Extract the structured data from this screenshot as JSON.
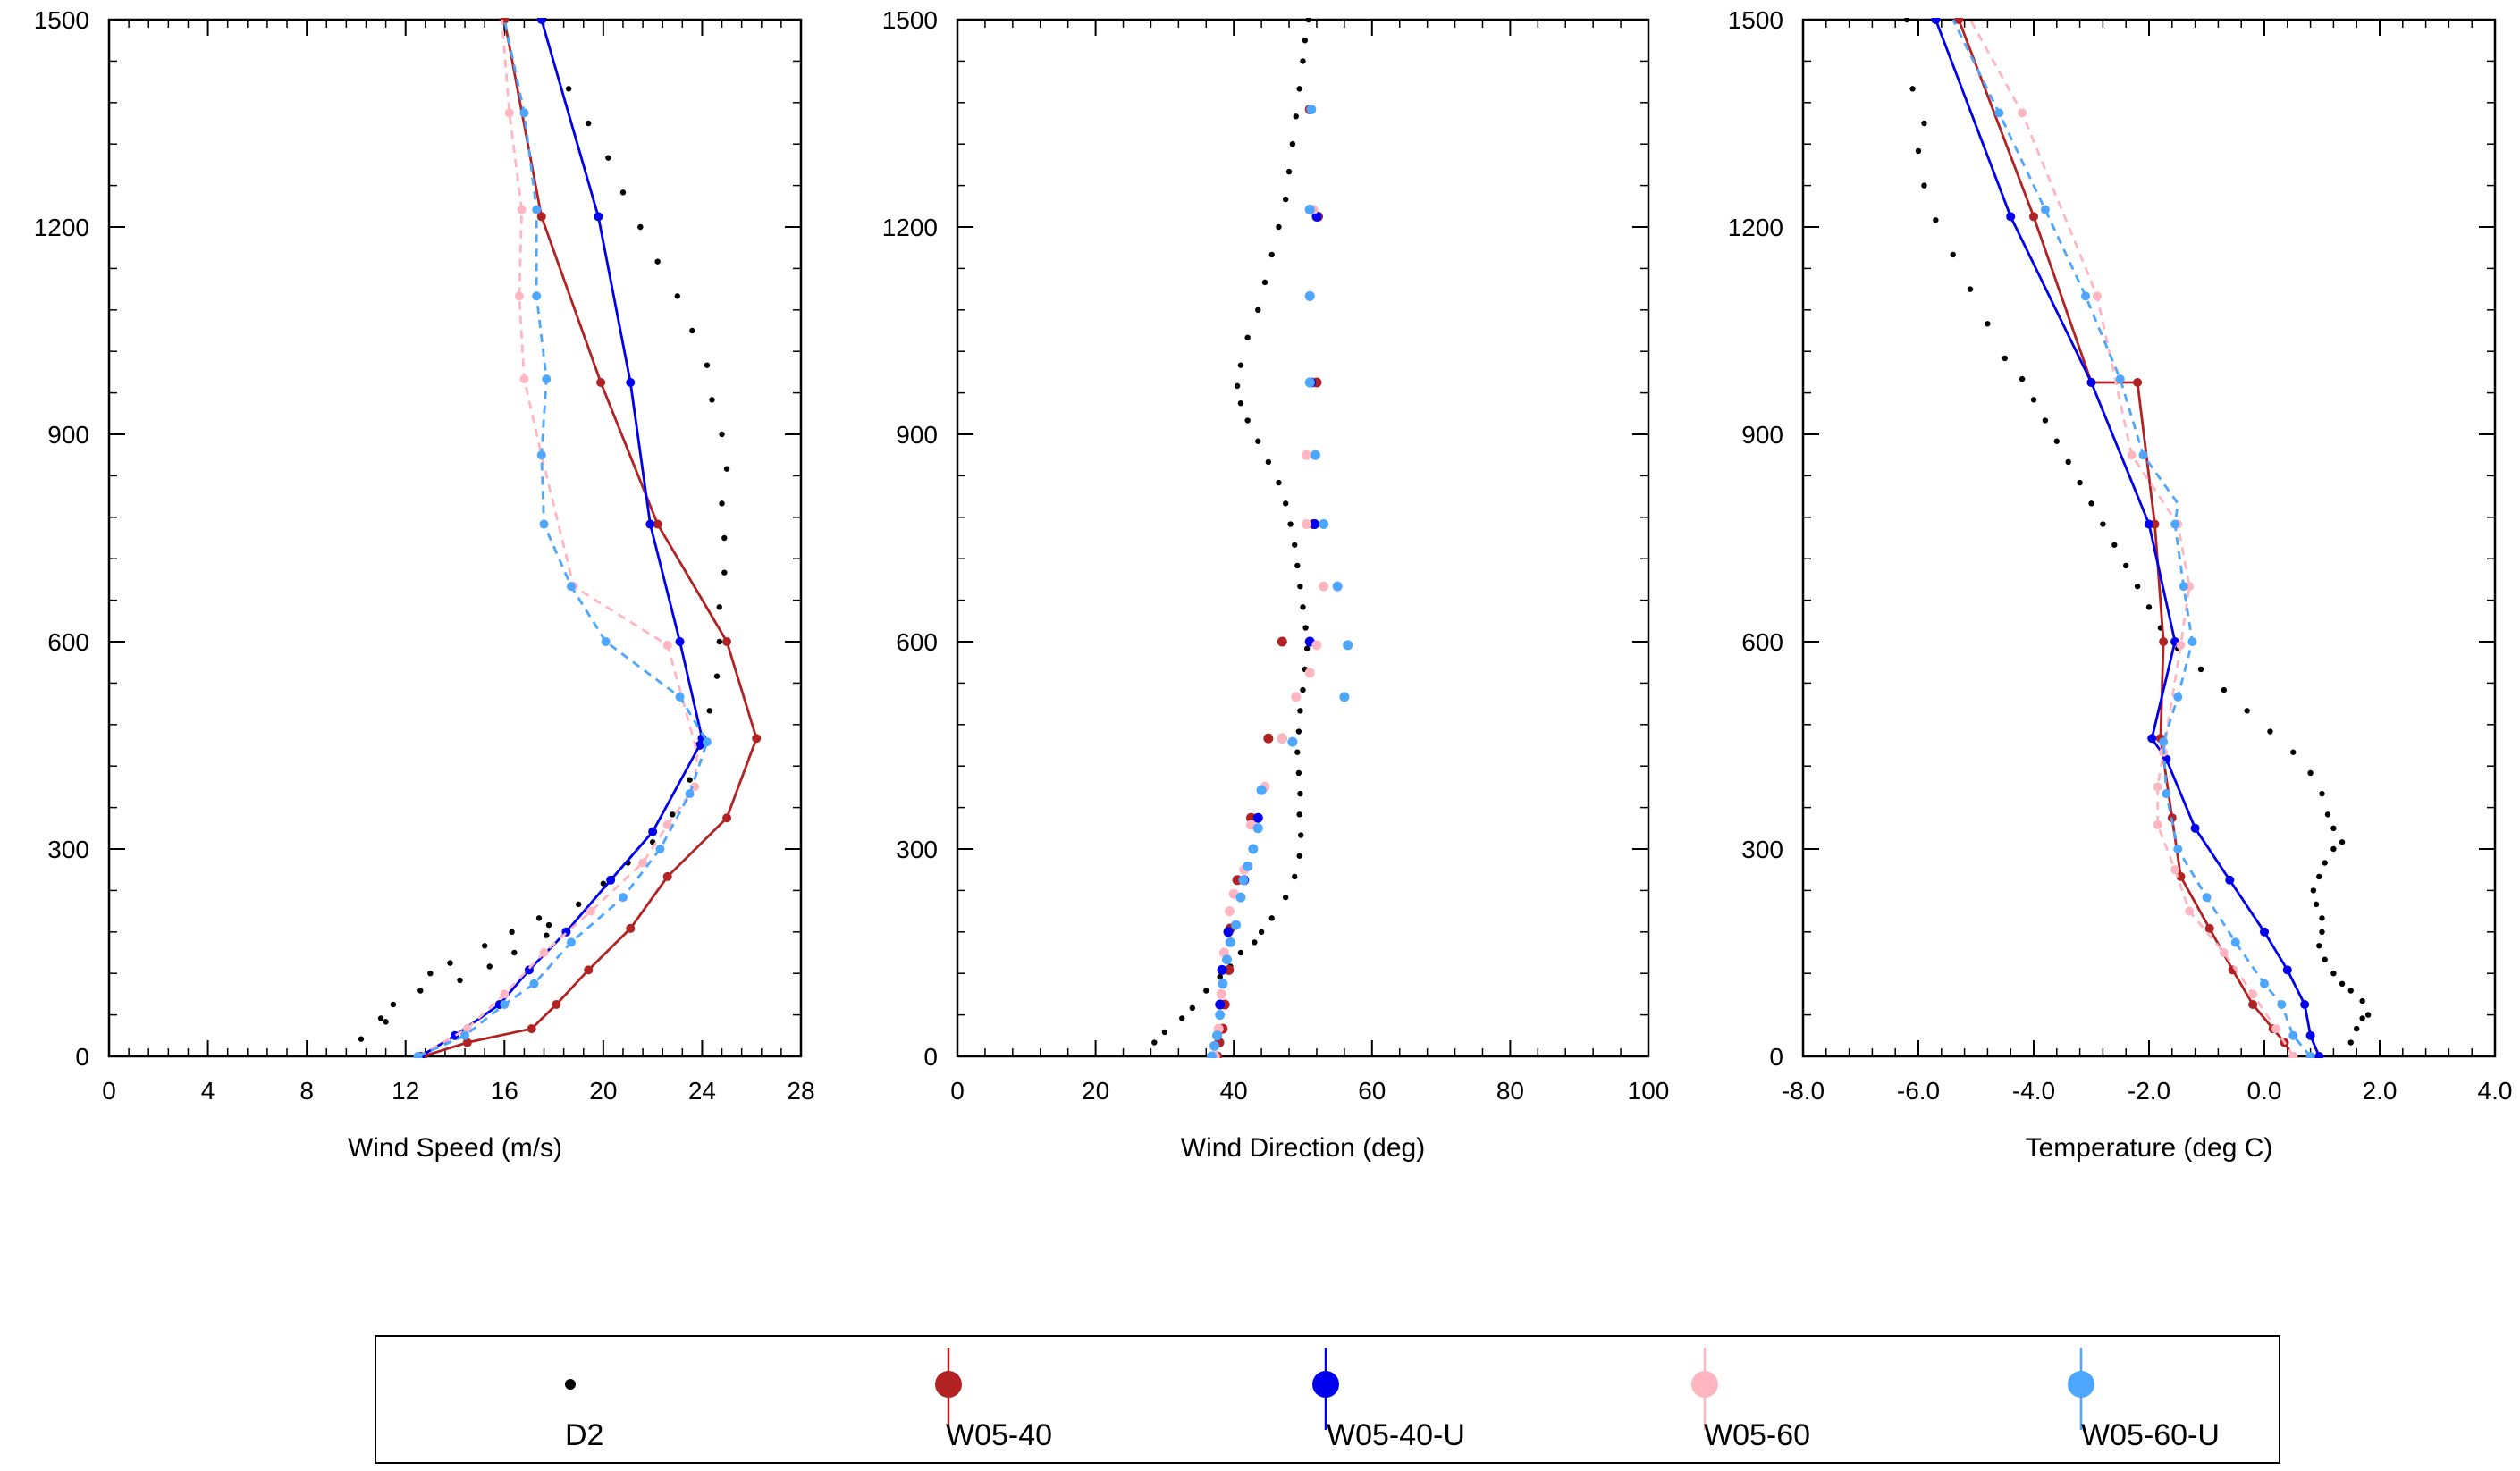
{
  "chart_data": [
    {
      "type": "line",
      "xlabel": "Wind Speed (m/s)",
      "ylabel": "",
      "xlim": [
        0,
        28
      ],
      "ylim": [
        0,
        1500
      ],
      "xticks": [
        "0",
        "4",
        "8",
        "12",
        "16",
        "20",
        "24",
        "28"
      ],
      "yticks": [
        "0",
        "300",
        "600",
        "900",
        "1200",
        "1500"
      ],
      "series": [
        {
          "name": "D2",
          "style": "dots",
          "color": "#000000",
          "x": [
            10.2,
            11.0,
            11.5,
            11.2,
            13.0,
            12.6,
            13.8,
            14.2,
            15.2,
            15.4,
            16.3,
            16.4,
            17.4,
            17.7,
            17.8,
            19.0,
            20.0,
            21.0,
            22.0,
            22.8,
            23.5,
            23.8,
            24.3,
            24.6,
            24.7,
            24.7,
            24.9,
            24.9,
            24.8,
            25.0,
            24.8,
            24.4,
            24.2,
            23.6,
            23.0,
            22.2,
            21.5,
            20.8,
            20.2,
            19.4,
            18.6,
            17.6
          ],
          "y": [
            25,
            55,
            75,
            50,
            120,
            95,
            135,
            110,
            160,
            130,
            180,
            150,
            200,
            175,
            190,
            220,
            250,
            280,
            310,
            350,
            400,
            450,
            500,
            550,
            600,
            650,
            700,
            750,
            800,
            850,
            900,
            950,
            1000,
            1050,
            1100,
            1150,
            1200,
            1250,
            1300,
            1350,
            1400,
            1500
          ]
        },
        {
          "name": "W05-40",
          "style": "line",
          "color": "#b22222",
          "x": [
            12.7,
            14.5,
            17.1,
            18.1,
            19.4,
            21.1,
            22.6,
            25.0,
            26.2,
            25.0,
            22.2,
            19.9,
            17.5,
            16.0
          ],
          "y": [
            0,
            20,
            40,
            75,
            125,
            185,
            260,
            345,
            460,
            600,
            770,
            975,
            1215,
            1500
          ]
        },
        {
          "name": "W05-40-U",
          "style": "line",
          "color": "#0000ee",
          "x": [
            12.6,
            14.0,
            15.8,
            17.0,
            18.5,
            20.3,
            22.0,
            23.9,
            24.0,
            23.1,
            21.9,
            21.1,
            19.8,
            17.5
          ],
          "y": [
            0,
            30,
            75,
            125,
            180,
            255,
            325,
            450,
            460,
            600,
            770,
            975,
            1215,
            1500
          ]
        },
        {
          "name": "W05-60",
          "style": "dashed",
          "color": "#ffb6c1",
          "x": [
            12.5,
            14.5,
            16.0,
            17.6,
            19.5,
            21.6,
            22.6,
            23.7,
            23.8,
            22.6,
            18.8,
            17.5,
            16.8,
            16.6,
            16.7,
            16.2,
            15.9
          ],
          "y": [
            0,
            40,
            90,
            150,
            210,
            280,
            335,
            390,
            440,
            595,
            680,
            870,
            980,
            1100,
            1225,
            1365,
            1500
          ],
          "dot_x": [
            12.5,
            14.5,
            16.0,
            17.6,
            19.5,
            21.6,
            22.6,
            23.7,
            22.6,
            18.8,
            17.5,
            16.8,
            16.6,
            16.7,
            16.2
          ],
          "dot_y": [
            0,
            40,
            90,
            150,
            210,
            280,
            335,
            390,
            595,
            680,
            870,
            980,
            1100,
            1225,
            1365
          ]
        },
        {
          "name": "W05-60-U",
          "style": "dashed",
          "color": "#4da6ff",
          "x": [
            12.5,
            14.4,
            16.0,
            17.2,
            18.7,
            20.8,
            22.3,
            23.5,
            24.2,
            23.1,
            20.1,
            18.7,
            17.6,
            17.5,
            17.7,
            17.3,
            17.3,
            16.8,
            16.0
          ],
          "y": [
            0,
            30,
            75,
            105,
            165,
            230,
            300,
            380,
            455,
            520,
            600,
            680,
            770,
            870,
            980,
            1100,
            1225,
            1365,
            1500
          ],
          "dot_x": [
            12.5,
            14.4,
            16.0,
            17.2,
            18.7,
            20.8,
            22.3,
            23.5,
            24.2,
            23.1,
            20.1,
            18.7,
            17.6,
            17.5,
            17.7,
            17.3,
            17.3,
            16.8
          ],
          "dot_y": [
            0,
            30,
            75,
            105,
            165,
            230,
            300,
            380,
            455,
            520,
            600,
            680,
            770,
            870,
            980,
            1100,
            1225,
            1365
          ]
        }
      ]
    },
    {
      "type": "scatter",
      "xlabel": "Wind Direction (deg)",
      "ylabel": "",
      "xlim": [
        0,
        100
      ],
      "ylim": [
        0,
        1500
      ],
      "xticks": [
        "0",
        "20",
        "40",
        "60",
        "80",
        "100"
      ],
      "yticks": [
        "0",
        "300",
        "600",
        "900",
        "1200",
        "1500"
      ],
      "series": [
        {
          "name": "D2",
          "style": "dots",
          "color": "#000000",
          "x": [
            28.5,
            30.0,
            32.5,
            34.0,
            36.0,
            38.0,
            39.5,
            41.0,
            43.0,
            44.0,
            45.5,
            47.5,
            48.8,
            49.5,
            49.7,
            49.5,
            49.6,
            49.4,
            49.2,
            49.4,
            49.6,
            50.0,
            50.3,
            50.6,
            50.4,
            50.0,
            49.6,
            49.2,
            48.8,
            48.2,
            47.5,
            46.5,
            45.0,
            43.5,
            42.0,
            41.0,
            40.5,
            41.0,
            42.0,
            43.5,
            44.5,
            45.5,
            46.5,
            47.5,
            48.0,
            48.5,
            49.0,
            49.5,
            50.0,
            50.3,
            50.8
          ],
          "y": [
            20,
            35,
            55,
            70,
            95,
            115,
            130,
            150,
            165,
            180,
            200,
            230,
            260,
            290,
            320,
            350,
            380,
            410,
            440,
            470,
            500,
            530,
            560,
            590,
            620,
            650,
            680,
            710,
            740,
            770,
            800,
            830,
            860,
            890,
            920,
            945,
            970,
            1000,
            1040,
            1080,
            1120,
            1160,
            1200,
            1240,
            1280,
            1320,
            1360,
            1400,
            1440,
            1470,
            1500
          ]
        },
        {
          "name": "W05-40",
          "style": "dots",
          "color": "#b22222",
          "x": [
            37.6,
            37.9,
            38.4,
            38.7,
            39.3,
            39.5,
            40.5,
            42.5,
            45.0,
            47.0,
            51.5,
            52.0,
            52.2,
            51.0
          ],
          "y": [
            0,
            20,
            40,
            75,
            125,
            185,
            255,
            345,
            460,
            600,
            770,
            975,
            1215,
            1370
          ]
        },
        {
          "name": "W05-40-U",
          "style": "dots",
          "color": "#0000ee",
          "x": [
            37.2,
            37.6,
            38.0,
            38.3,
            39.2,
            41.5,
            43.5,
            47.0,
            51.0,
            51.7,
            51.2,
            52.0
          ],
          "y": [
            0,
            30,
            75,
            125,
            180,
            255,
            345,
            460,
            600,
            770,
            975,
            1215
          ]
        },
        {
          "name": "W05-60",
          "style": "dots",
          "color": "#ffb6c1",
          "x": [
            37.3,
            37.8,
            38.2,
            38.6,
            39.4,
            40.0,
            41.5,
            42.5,
            44.5,
            47.0,
            49.0,
            51.0,
            52.0,
            53.0,
            50.5,
            50.5,
            51.0,
            51.0,
            51.5
          ],
          "y": [
            0,
            40,
            90,
            150,
            210,
            235,
            270,
            335,
            390,
            460,
            520,
            555,
            595,
            680,
            770,
            870,
            975,
            1100,
            1225
          ]
        },
        {
          "name": "W05-60-U",
          "style": "dots",
          "color": "#4da6ff",
          "x": [
            36.8,
            37.2,
            37.6,
            38.0,
            38.4,
            39.0,
            39.5,
            40.3,
            41.0,
            41.4,
            42.0,
            42.8,
            43.5,
            44.0,
            48.5,
            56.0,
            56.5,
            55.0,
            53.0,
            51.8,
            51.0,
            51.0,
            51.0,
            51.2,
            51.0
          ],
          "y": [
            0,
            15,
            30,
            60,
            105,
            140,
            165,
            190,
            230,
            255,
            275,
            300,
            330,
            385,
            455,
            520,
            595,
            680,
            770,
            870,
            975,
            1100,
            1225,
            1370,
            1225
          ]
        }
      ]
    },
    {
      "type": "line",
      "xlabel": "Temperature (deg C)",
      "ylabel": "",
      "xlim": [
        -8.0,
        4.0
      ],
      "ylim": [
        0,
        1500
      ],
      "xticks": [
        "-8.0",
        "-6.0",
        "-4.0",
        "-2.0",
        "0.0",
        "2.0",
        "4.0"
      ],
      "yticks": [
        "0",
        "300",
        "600",
        "900",
        "1200",
        "1500"
      ],
      "series": [
        {
          "name": "D2",
          "style": "dots",
          "color": "#000000",
          "x": [
            1.5,
            1.6,
            1.7,
            1.8,
            1.7,
            1.5,
            1.35,
            1.2,
            1.05,
            0.95,
            1.0,
            1.0,
            0.9,
            0.85,
            0.95,
            1.05,
            1.2,
            1.35,
            1.2,
            1.1,
            1.0,
            0.8,
            0.5,
            0.1,
            -0.3,
            -0.7,
            -1.1,
            -1.5,
            -1.8,
            -2.0,
            -2.2,
            -2.4,
            -2.6,
            -2.8,
            -3.0,
            -3.2,
            -3.4,
            -3.6,
            -3.8,
            -4.0,
            -4.2,
            -4.5,
            -4.8,
            -5.1,
            -5.4,
            -5.7,
            -5.9,
            -6.0,
            -5.9,
            -6.1,
            -6.2
          ],
          "y": [
            20,
            40,
            55,
            60,
            80,
            95,
            105,
            120,
            140,
            160,
            180,
            200,
            220,
            240,
            260,
            280,
            300,
            310,
            330,
            350,
            380,
            410,
            440,
            470,
            500,
            530,
            560,
            590,
            620,
            650,
            680,
            710,
            740,
            770,
            800,
            830,
            860,
            890,
            920,
            950,
            980,
            1010,
            1060,
            1110,
            1160,
            1210,
            1260,
            1310,
            1350,
            1400,
            1500
          ]
        },
        {
          "name": "W05-40",
          "style": "line",
          "color": "#b22222",
          "x": [
            0.5,
            0.35,
            0.15,
            -0.2,
            -0.55,
            -0.95,
            -1.45,
            -1.6,
            -1.8,
            -1.75,
            -1.9,
            -2.2,
            -3.0,
            -4.0,
            -5.3
          ],
          "y": [
            0,
            20,
            40,
            75,
            125,
            185,
            260,
            345,
            460,
            600,
            770,
            975,
            975,
            1215,
            1500
          ]
        },
        {
          "name": "W05-40-U",
          "style": "line",
          "color": "#0000ee",
          "x": [
            0.95,
            0.8,
            0.7,
            0.4,
            0.0,
            -0.6,
            -1.2,
            -1.7,
            -1.95,
            -1.55,
            -2.0,
            -3.0,
            -4.4,
            -5.7
          ],
          "y": [
            0,
            30,
            75,
            125,
            180,
            255,
            330,
            430,
            460,
            600,
            770,
            975,
            1215,
            1500
          ]
        },
        {
          "name": "W05-60",
          "style": "dashed",
          "color": "#ffb6c1",
          "x": [
            0.5,
            0.2,
            -0.2,
            -0.7,
            -1.3,
            -1.55,
            -1.85,
            -1.85,
            -1.75,
            -1.45,
            -1.3,
            -1.5,
            -2.3,
            -2.9,
            -4.2,
            -5.1
          ],
          "y": [
            0,
            40,
            90,
            150,
            210,
            270,
            335,
            390,
            440,
            595,
            680,
            770,
            870,
            1100,
            1365,
            1500
          ],
          "dot_x": [
            0.5,
            0.2,
            -0.2,
            -0.7,
            -1.3,
            -1.55,
            -1.85,
            -1.85,
            -1.75,
            -1.45,
            -1.3,
            -1.5,
            -2.3,
            -2.9,
            -4.2
          ],
          "dot_y": [
            0,
            40,
            90,
            150,
            210,
            270,
            335,
            390,
            440,
            595,
            680,
            770,
            870,
            1100,
            1365
          ]
        },
        {
          "name": "W05-60-U",
          "style": "dashed",
          "color": "#4da6ff",
          "x": [
            0.8,
            0.5,
            0.3,
            0.0,
            -0.5,
            -1.0,
            -1.5,
            -1.7,
            -1.75,
            -1.5,
            -1.25,
            -1.4,
            -1.55,
            -1.5,
            -2.1,
            -2.5,
            -3.1,
            -3.8,
            -4.6,
            -5.4
          ],
          "y": [
            0,
            30,
            75,
            105,
            165,
            230,
            300,
            380,
            455,
            520,
            600,
            680,
            770,
            800,
            870,
            980,
            1100,
            1225,
            1365,
            1500
          ],
          "dot_x": [
            0.8,
            0.5,
            0.3,
            0.0,
            -0.5,
            -1.0,
            -1.5,
            -1.7,
            -1.75,
            -1.5,
            -1.25,
            -1.4,
            -1.55,
            -2.1,
            -2.5,
            -3.1,
            -3.8,
            -4.6
          ],
          "dot_y": [
            0,
            30,
            75,
            105,
            165,
            230,
            300,
            380,
            455,
            520,
            600,
            680,
            770,
            870,
            980,
            1100,
            1225,
            1365
          ]
        }
      ]
    }
  ],
  "legend": {
    "placement": "bottom",
    "items": [
      {
        "label": "D2",
        "color": "#000000",
        "marker": "dot"
      },
      {
        "label": "W05-40",
        "color": "#b22222",
        "marker": "line-dot"
      },
      {
        "label": "W05-40-U",
        "color": "#0000ee",
        "marker": "line-dot"
      },
      {
        "label": "W05-60",
        "color": "#ffb6c1",
        "marker": "line-dot"
      },
      {
        "label": "W05-60-U",
        "color": "#4da6ff",
        "marker": "line-dot"
      }
    ]
  }
}
